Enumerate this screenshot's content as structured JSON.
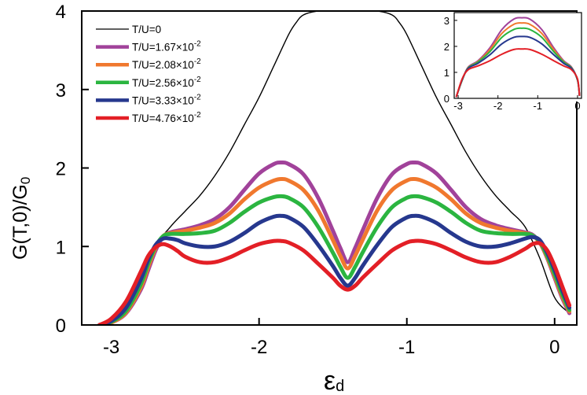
{
  "chart_data": [
    {
      "type": "line",
      "title": "",
      "xlabel_main": "ε",
      "xlabel_sub": "d",
      "ylabel": "G(T,0)/G",
      "ylabel_sub": "0",
      "xlim": [
        -3.2,
        0.15
      ],
      "ylim": [
        0,
        4
      ],
      "xticks": [
        -3,
        -2,
        -1,
        0
      ],
      "xtick_labels": [
        "-3",
        "-2",
        "-1",
        "0"
      ],
      "yticks": [
        0,
        1,
        2,
        3,
        4
      ],
      "ytick_labels": [
        "0",
        "1",
        "2",
        "3",
        "4"
      ],
      "legend_position": "top-left",
      "series": [
        {
          "name": "T/U=0",
          "legend": "T/U=0",
          "color": "#000000",
          "width": 1.4,
          "x": [
            -3.0,
            -2.9,
            -2.8,
            -2.7,
            -2.6,
            -2.5,
            -2.4,
            -2.3,
            -2.2,
            -2.1,
            -2.0,
            -1.9,
            -1.8,
            -1.75,
            -1.7,
            -1.6,
            -1.5,
            -1.4,
            -1.3,
            -1.2,
            -1.1,
            -1.05,
            -1.0,
            -0.9,
            -0.8,
            -0.7,
            -0.6,
            -0.5,
            -0.4,
            -0.3,
            -0.2,
            -0.1,
            0.0,
            0.1
          ],
          "y": [
            0.05,
            0.2,
            0.55,
            1.0,
            1.25,
            1.45,
            1.65,
            1.9,
            2.2,
            2.55,
            2.9,
            3.3,
            3.7,
            3.85,
            3.95,
            4.0,
            4.0,
            4.0,
            4.0,
            4.0,
            3.95,
            3.85,
            3.7,
            3.3,
            2.9,
            2.55,
            2.2,
            1.9,
            1.65,
            1.45,
            1.25,
            0.85,
            0.35,
            0.15
          ]
        },
        {
          "name": "T/U=1.67e-2",
          "legend": "T/U=1.67×10",
          "legend_exp": "-2",
          "color": "#a1429a",
          "width": 5,
          "x": [
            -3.08,
            -3.0,
            -2.9,
            -2.8,
            -2.75,
            -2.7,
            -2.65,
            -2.6,
            -2.5,
            -2.4,
            -2.3,
            -2.2,
            -2.1,
            -2.0,
            -1.9,
            -1.85,
            -1.8,
            -1.7,
            -1.6,
            -1.5,
            -1.45,
            -1.4,
            -1.35,
            -1.3,
            -1.2,
            -1.1,
            -1.0,
            -0.95,
            -0.9,
            -0.8,
            -0.7,
            -0.6,
            -0.5,
            -0.4,
            -0.3,
            -0.2,
            -0.15,
            -0.1,
            -0.05,
            0.0,
            0.05,
            0.1
          ],
          "y": [
            0.0,
            0.03,
            0.15,
            0.45,
            0.7,
            0.95,
            1.12,
            1.18,
            1.22,
            1.27,
            1.35,
            1.5,
            1.72,
            1.93,
            2.05,
            2.07,
            2.05,
            1.92,
            1.62,
            1.2,
            0.98,
            0.8,
            0.98,
            1.2,
            1.62,
            1.92,
            2.05,
            2.07,
            2.05,
            1.93,
            1.72,
            1.5,
            1.35,
            1.27,
            1.22,
            1.18,
            1.15,
            1.05,
            0.85,
            0.6,
            0.35,
            0.15
          ]
        },
        {
          "name": "T/U=2.08e-2",
          "legend": "T/U=2.08×10",
          "legend_exp": "-2",
          "color": "#f0782e",
          "width": 5,
          "x": [
            -3.08,
            -3.0,
            -2.9,
            -2.8,
            -2.75,
            -2.7,
            -2.65,
            -2.6,
            -2.5,
            -2.4,
            -2.3,
            -2.2,
            -2.1,
            -2.0,
            -1.9,
            -1.85,
            -1.8,
            -1.7,
            -1.6,
            -1.5,
            -1.45,
            -1.4,
            -1.35,
            -1.3,
            -1.2,
            -1.1,
            -1.0,
            -0.95,
            -0.9,
            -0.8,
            -0.7,
            -0.6,
            -0.5,
            -0.4,
            -0.3,
            -0.2,
            -0.15,
            -0.1,
            -0.05,
            0.0,
            0.05,
            0.1
          ],
          "y": [
            0.0,
            0.03,
            0.16,
            0.48,
            0.74,
            0.98,
            1.13,
            1.17,
            1.2,
            1.24,
            1.3,
            1.42,
            1.6,
            1.75,
            1.84,
            1.86,
            1.84,
            1.72,
            1.46,
            1.08,
            0.88,
            0.72,
            0.88,
            1.08,
            1.46,
            1.72,
            1.84,
            1.86,
            1.84,
            1.75,
            1.6,
            1.42,
            1.3,
            1.24,
            1.2,
            1.17,
            1.14,
            1.05,
            0.86,
            0.62,
            0.37,
            0.17
          ]
        },
        {
          "name": "T/U=2.56e-2",
          "legend": "T/U=2.56×10",
          "legend_exp": "-2",
          "color": "#2bb540",
          "width": 5,
          "x": [
            -3.08,
            -3.0,
            -2.9,
            -2.8,
            -2.75,
            -2.7,
            -2.65,
            -2.6,
            -2.5,
            -2.4,
            -2.3,
            -2.2,
            -2.1,
            -2.0,
            -1.9,
            -1.85,
            -1.8,
            -1.7,
            -1.6,
            -1.5,
            -1.45,
            -1.4,
            -1.35,
            -1.3,
            -1.2,
            -1.1,
            -1.0,
            -0.95,
            -0.9,
            -0.8,
            -0.7,
            -0.6,
            -0.5,
            -0.4,
            -0.3,
            -0.2,
            -0.15,
            -0.1,
            -0.05,
            0.0,
            0.05,
            0.1
          ],
          "y": [
            0.0,
            0.04,
            0.18,
            0.52,
            0.78,
            1.0,
            1.13,
            1.16,
            1.16,
            1.17,
            1.2,
            1.3,
            1.44,
            1.56,
            1.63,
            1.64,
            1.62,
            1.5,
            1.25,
            0.92,
            0.74,
            0.6,
            0.74,
            0.92,
            1.25,
            1.5,
            1.62,
            1.64,
            1.63,
            1.56,
            1.44,
            1.3,
            1.2,
            1.17,
            1.16,
            1.16,
            1.14,
            1.06,
            0.88,
            0.65,
            0.4,
            0.19
          ]
        },
        {
          "name": "T/U=3.33e-2",
          "legend": "T/U=3.33×10",
          "legend_exp": "-2",
          "color": "#26388e",
          "width": 5,
          "x": [
            -3.08,
            -3.0,
            -2.9,
            -2.8,
            -2.75,
            -2.7,
            -2.65,
            -2.6,
            -2.55,
            -2.5,
            -2.4,
            -2.3,
            -2.2,
            -2.1,
            -2.0,
            -1.9,
            -1.85,
            -1.8,
            -1.7,
            -1.6,
            -1.5,
            -1.45,
            -1.4,
            -1.35,
            -1.3,
            -1.2,
            -1.1,
            -1.0,
            -0.95,
            -0.9,
            -0.8,
            -0.7,
            -0.6,
            -0.5,
            -0.4,
            -0.3,
            -0.2,
            -0.15,
            -0.1,
            -0.05,
            0.0,
            0.05,
            0.1
          ],
          "y": [
            0.0,
            0.05,
            0.22,
            0.58,
            0.83,
            1.02,
            1.1,
            1.1,
            1.08,
            1.04,
            1.0,
            1.0,
            1.06,
            1.17,
            1.3,
            1.38,
            1.39,
            1.37,
            1.25,
            1.02,
            0.75,
            0.6,
            0.5,
            0.6,
            0.75,
            1.02,
            1.25,
            1.37,
            1.39,
            1.38,
            1.3,
            1.17,
            1.06,
            1.0,
            1.0,
            1.04,
            1.1,
            1.12,
            1.08,
            0.92,
            0.7,
            0.45,
            0.22
          ]
        },
        {
          "name": "T/U=4.76e-2",
          "legend": "T/U=4.76×10",
          "legend_exp": "-2",
          "color": "#e31f26",
          "width": 5,
          "x": [
            -3.08,
            -3.0,
            -2.9,
            -2.8,
            -2.75,
            -2.7,
            -2.65,
            -2.6,
            -2.55,
            -2.5,
            -2.4,
            -2.3,
            -2.2,
            -2.1,
            -2.0,
            -1.9,
            -1.85,
            -1.8,
            -1.7,
            -1.6,
            -1.5,
            -1.45,
            -1.4,
            -1.35,
            -1.3,
            -1.2,
            -1.1,
            -1.0,
            -0.95,
            -0.9,
            -0.8,
            -0.7,
            -0.6,
            -0.5,
            -0.4,
            -0.3,
            -0.2,
            -0.15,
            -0.1,
            -0.05,
            0.0,
            0.05,
            0.1
          ],
          "y": [
            0.0,
            0.08,
            0.3,
            0.68,
            0.88,
            0.99,
            1.03,
            1.0,
            0.94,
            0.87,
            0.8,
            0.8,
            0.86,
            0.95,
            1.03,
            1.07,
            1.07,
            1.05,
            0.95,
            0.78,
            0.6,
            0.5,
            0.45,
            0.5,
            0.6,
            0.78,
            0.95,
            1.05,
            1.07,
            1.07,
            1.03,
            0.95,
            0.86,
            0.8,
            0.8,
            0.87,
            0.97,
            1.03,
            1.04,
            0.95,
            0.75,
            0.5,
            0.25
          ]
        }
      ]
    },
    {
      "type": "line",
      "name": "inset",
      "xlim": [
        -3.1,
        0.1
      ],
      "ylim": [
        0,
        3.3
      ],
      "xticks": [
        -3,
        -2,
        -1,
        0
      ],
      "xtick_labels": [
        "-3",
        "-2",
        "-1",
        "0"
      ],
      "yticks": [
        0,
        1,
        2,
        3
      ],
      "ytick_labels": [
        "0",
        "1",
        "2",
        "3"
      ],
      "series": [
        {
          "name": "inset-1.67e-2",
          "color": "#a1429a",
          "width": 2,
          "x": [
            -3.05,
            -2.9,
            -2.75,
            -2.5,
            -2.2,
            -1.9,
            -1.6,
            -1.4,
            -1.2,
            -0.9,
            -0.6,
            -0.35,
            -0.15,
            0.0,
            0.05
          ],
          "y": [
            0.05,
            0.7,
            1.2,
            1.45,
            1.95,
            2.65,
            3.05,
            3.1,
            3.05,
            2.65,
            1.95,
            1.45,
            1.2,
            0.7,
            0.1
          ]
        },
        {
          "name": "inset-2.08e-2",
          "color": "#f0782e",
          "width": 2,
          "x": [
            -3.05,
            -2.9,
            -2.75,
            -2.5,
            -2.2,
            -1.9,
            -1.6,
            -1.4,
            -1.2,
            -0.9,
            -0.6,
            -0.35,
            -0.15,
            0.0,
            0.05
          ],
          "y": [
            0.05,
            0.7,
            1.18,
            1.42,
            1.88,
            2.5,
            2.85,
            2.9,
            2.85,
            2.5,
            1.88,
            1.42,
            1.18,
            0.7,
            0.1
          ]
        },
        {
          "name": "inset-2.56e-2",
          "color": "#2bb540",
          "width": 2,
          "x": [
            -3.05,
            -2.9,
            -2.75,
            -2.5,
            -2.2,
            -1.9,
            -1.6,
            -1.4,
            -1.2,
            -0.9,
            -0.6,
            -0.35,
            -0.15,
            0.0,
            0.05
          ],
          "y": [
            0.05,
            0.7,
            1.17,
            1.4,
            1.8,
            2.35,
            2.65,
            2.7,
            2.65,
            2.35,
            1.8,
            1.4,
            1.17,
            0.7,
            0.1
          ]
        },
        {
          "name": "inset-3.33e-2",
          "color": "#26388e",
          "width": 2,
          "x": [
            -3.05,
            -2.9,
            -2.75,
            -2.5,
            -2.2,
            -1.9,
            -1.6,
            -1.4,
            -1.2,
            -0.9,
            -0.6,
            -0.35,
            -0.15,
            0.0,
            0.05
          ],
          "y": [
            0.05,
            0.72,
            1.15,
            1.35,
            1.68,
            2.1,
            2.35,
            2.38,
            2.35,
            2.1,
            1.68,
            1.35,
            1.15,
            0.72,
            0.1
          ]
        },
        {
          "name": "inset-4.76e-2",
          "color": "#e31f26",
          "width": 2,
          "x": [
            -3.05,
            -2.9,
            -2.75,
            -2.5,
            -2.2,
            -1.9,
            -1.6,
            -1.4,
            -1.2,
            -0.9,
            -0.6,
            -0.35,
            -0.15,
            0.0,
            0.05
          ],
          "y": [
            0.05,
            0.75,
            1.1,
            1.25,
            1.45,
            1.7,
            1.88,
            1.9,
            1.88,
            1.7,
            1.45,
            1.25,
            1.1,
            0.75,
            0.1
          ]
        }
      ]
    }
  ]
}
